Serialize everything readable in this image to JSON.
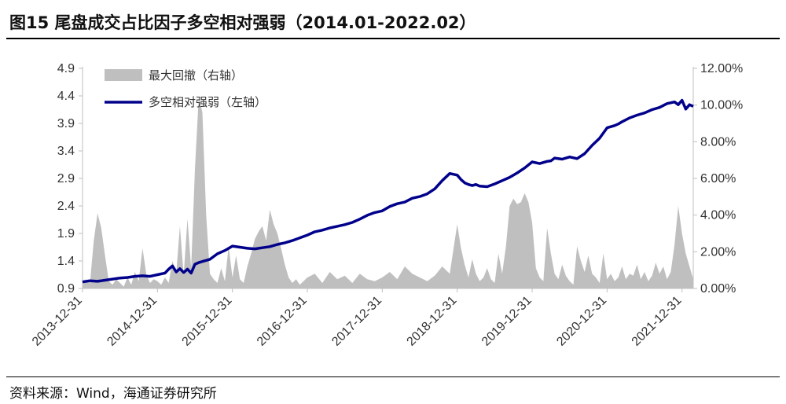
{
  "title": "图15 尾盘成交占比因子多空相对强弱（2014.01-2022.02）",
  "source": "资料来源：Wind，海通证券研究所",
  "chart_data": {
    "type": "line+area",
    "grid": false,
    "legend_position": "top-left",
    "x_tick_labels": [
      "2013-12-31",
      "2014-12-31",
      "2015-12-31",
      "2016-12-31",
      "2017-12-31",
      "2018-12-31",
      "2019-12-31",
      "2020-12-31",
      "2021-12-31"
    ],
    "y_left": {
      "ticks": [
        "0.9",
        "1.4",
        "1.9",
        "2.4",
        "2.9",
        "3.4",
        "3.9",
        "4.4",
        "4.9"
      ],
      "ylim": [
        0.9,
        4.9
      ]
    },
    "y_right": {
      "ticks": [
        "0.00%",
        "2.00%",
        "4.00%",
        "6.00%",
        "8.00%",
        "10.00%",
        "12.00%"
      ],
      "ylim": [
        0,
        12
      ]
    },
    "series": [
      {
        "name": "最大回撤（右轴）",
        "axis": "right",
        "kind": "area",
        "color": "#bfbfbf",
        "x": [
          2014.0,
          2014.05,
          2014.1,
          2014.15,
          2014.2,
          2014.25,
          2014.3,
          2014.35,
          2014.4,
          2014.45,
          2014.5,
          2014.55,
          2014.6,
          2014.65,
          2014.7,
          2014.75,
          2014.8,
          2014.85,
          2014.9,
          2014.95,
          2015.0,
          2015.05,
          2015.1,
          2015.15,
          2015.2,
          2015.25,
          2015.3,
          2015.35,
          2015.4,
          2015.45,
          2015.5,
          2015.55,
          2015.6,
          2015.65,
          2015.7,
          2015.75,
          2015.8,
          2015.85,
          2015.9,
          2015.95,
          2016.0,
          2016.05,
          2016.1,
          2016.15,
          2016.2,
          2016.25,
          2016.3,
          2016.35,
          2016.4,
          2016.45,
          2016.5,
          2016.55,
          2016.6,
          2016.65,
          2016.7,
          2016.75,
          2016.8,
          2016.85,
          2016.9,
          2016.95,
          2017.0,
          2017.1,
          2017.2,
          2017.3,
          2017.4,
          2017.5,
          2017.6,
          2017.7,
          2017.8,
          2017.9,
          2018.0,
          2018.1,
          2018.2,
          2018.3,
          2018.4,
          2018.5,
          2018.6,
          2018.7,
          2018.8,
          2018.9,
          2019.0,
          2019.05,
          2019.1,
          2019.15,
          2019.2,
          2019.25,
          2019.3,
          2019.35,
          2019.4,
          2019.45,
          2019.5,
          2019.55,
          2019.6,
          2019.65,
          2019.7,
          2019.75,
          2019.8,
          2019.85,
          2019.9,
          2019.95,
          2020.0,
          2020.05,
          2020.1,
          2020.15,
          2020.2,
          2020.25,
          2020.3,
          2020.35,
          2020.4,
          2020.45,
          2020.5,
          2020.55,
          2020.6,
          2020.65,
          2020.7,
          2020.75,
          2020.8,
          2020.85,
          2020.9,
          2020.95,
          2021.0,
          2021.05,
          2021.1,
          2021.15,
          2021.2,
          2021.25,
          2021.3,
          2021.35,
          2021.4,
          2021.45,
          2021.5,
          2021.55,
          2021.6,
          2021.65,
          2021.7,
          2021.75,
          2021.8,
          2021.85,
          2021.9,
          2021.95,
          2022.0,
          2022.05,
          2022.1,
          2022.15
        ],
        "values": [
          0.2,
          0.5,
          0.3,
          2.6,
          4.1,
          3.3,
          1.8,
          0.4,
          0.2,
          0.5,
          0.3,
          0.1,
          0.6,
          0.2,
          0.9,
          0.4,
          2.2,
          0.8,
          0.3,
          0.5,
          0.4,
          0.2,
          0.6,
          0.3,
          1.5,
          0.8,
          3.4,
          0.7,
          3.8,
          1.1,
          6.5,
          10.4,
          9.6,
          4.0,
          0.8,
          0.5,
          0.3,
          1.1,
          0.4,
          2.3,
          0.6,
          1.8,
          0.5,
          0.3,
          1.2,
          1.9,
          2.7,
          3.1,
          3.4,
          2.6,
          4.3,
          3.5,
          3.0,
          2.2,
          1.3,
          0.6,
          0.3,
          0.5,
          0.2,
          0.4,
          0.6,
          0.8,
          0.3,
          0.9,
          0.5,
          0.7,
          0.3,
          0.8,
          0.5,
          0.4,
          0.6,
          0.9,
          0.5,
          1.2,
          0.8,
          0.6,
          0.4,
          0.7,
          1.2,
          0.8,
          3.5,
          2.2,
          1.3,
          0.6,
          1.6,
          0.8,
          0.4,
          0.6,
          1.1,
          0.5,
          0.3,
          1.9,
          0.8,
          2.3,
          4.5,
          4.9,
          4.6,
          4.7,
          5.2,
          4.7,
          3.6,
          1.1,
          0.6,
          0.4,
          3.3,
          1.9,
          0.8,
          0.5,
          1.3,
          0.7,
          0.4,
          0.2,
          2.3,
          1.5,
          0.9,
          1.8,
          0.8,
          0.6,
          0.3,
          1.9,
          0.5,
          0.8,
          0.4,
          0.6,
          1.2,
          0.5,
          0.8,
          0.7,
          1.3,
          0.5,
          0.9,
          0.4,
          0.7,
          1.4,
          0.8,
          1.2,
          0.5,
          0.9,
          2.4,
          4.5,
          3.0,
          1.9,
          1.2,
          0.5
        ]
      },
      {
        "name": "多空相对强弱（左轴）",
        "axis": "left",
        "kind": "line",
        "color": "#00008b",
        "x": [
          2014.0,
          2014.1,
          2014.2,
          2014.3,
          2014.4,
          2014.5,
          2014.6,
          2014.7,
          2014.8,
          2014.9,
          2015.0,
          2015.1,
          2015.15,
          2015.2,
          2015.25,
          2015.3,
          2015.35,
          2015.4,
          2015.45,
          2015.5,
          2015.55,
          2015.6,
          2015.65,
          2015.7,
          2015.8,
          2015.9,
          2016.0,
          2016.1,
          2016.2,
          2016.3,
          2016.4,
          2016.5,
          2016.6,
          2016.7,
          2016.8,
          2016.9,
          2017.0,
          2017.1,
          2017.2,
          2017.3,
          2017.4,
          2017.5,
          2017.6,
          2017.7,
          2017.8,
          2017.9,
          2018.0,
          2018.1,
          2018.2,
          2018.3,
          2018.4,
          2018.5,
          2018.6,
          2018.7,
          2018.8,
          2018.9,
          2019.0,
          2019.05,
          2019.1,
          2019.15,
          2019.2,
          2019.25,
          2019.3,
          2019.4,
          2019.5,
          2019.6,
          2019.7,
          2019.8,
          2019.9,
          2020.0,
          2020.1,
          2020.2,
          2020.25,
          2020.3,
          2020.4,
          2020.5,
          2020.6,
          2020.7,
          2020.8,
          2020.9,
          2021.0,
          2021.05,
          2021.1,
          2021.15,
          2021.2,
          2021.3,
          2021.4,
          2021.5,
          2021.6,
          2021.7,
          2021.8,
          2021.9,
          2021.95,
          2022.0,
          2022.05,
          2022.1,
          2022.15
        ],
        "values": [
          1.02,
          1.04,
          1.03,
          1.05,
          1.07,
          1.09,
          1.1,
          1.12,
          1.13,
          1.12,
          1.15,
          1.18,
          1.25,
          1.31,
          1.2,
          1.26,
          1.19,
          1.25,
          1.18,
          1.34,
          1.37,
          1.39,
          1.41,
          1.43,
          1.53,
          1.59,
          1.67,
          1.65,
          1.63,
          1.62,
          1.64,
          1.66,
          1.7,
          1.73,
          1.77,
          1.82,
          1.87,
          1.93,
          1.96,
          2.0,
          2.03,
          2.06,
          2.1,
          2.16,
          2.23,
          2.28,
          2.31,
          2.39,
          2.44,
          2.47,
          2.54,
          2.57,
          2.62,
          2.71,
          2.86,
          2.99,
          2.96,
          2.88,
          2.82,
          2.79,
          2.77,
          2.79,
          2.76,
          2.75,
          2.8,
          2.86,
          2.92,
          3.0,
          3.09,
          3.2,
          3.17,
          3.21,
          3.22,
          3.27,
          3.25,
          3.29,
          3.26,
          3.35,
          3.5,
          3.63,
          3.82,
          3.84,
          3.86,
          3.89,
          3.93,
          4.0,
          4.05,
          4.09,
          4.15,
          4.19,
          4.26,
          4.29,
          4.24,
          4.32,
          4.16,
          4.24,
          4.21
        ]
      }
    ]
  }
}
